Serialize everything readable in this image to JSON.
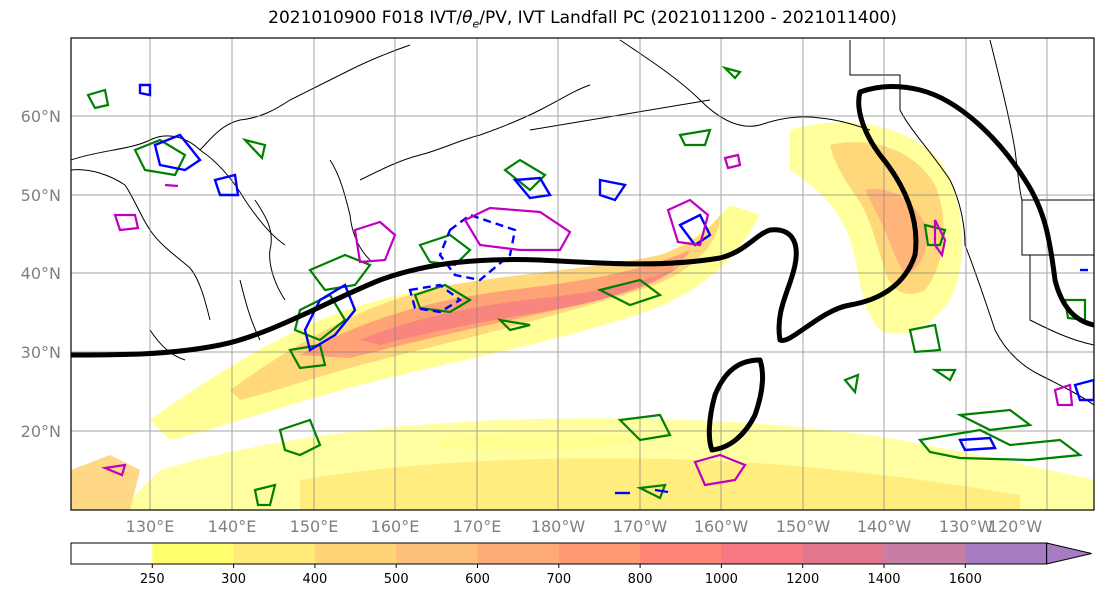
{
  "title_main": "2021010900 F018 IVT/",
  "title_theta": "θ",
  "title_sub": "e",
  "title_rest": "/PV, IVT Landfall PC (2021011200 - 2021011400)",
  "map": {
    "lat_labels": [
      "60°N",
      "50°N",
      "40°N",
      "30°N",
      "20°N"
    ],
    "lon_labels": [
      "130°E",
      "140°E",
      "150°E",
      "160°E",
      "170°E",
      "180°W",
      "170°W",
      "160°W",
      "150°W",
      "140°W",
      "130°W",
      "120°W"
    ],
    "grid": true
  },
  "colorbar": {
    "levels": [
      "250",
      "300",
      "400",
      "500",
      "600",
      "700",
      "800",
      "1000",
      "1200",
      "1400",
      "1600"
    ],
    "colors": [
      "#ffffff",
      "#ffff6e",
      "#ffe978",
      "#ffd479",
      "#ffc07a",
      "#ffab78",
      "#ff9a77",
      "#ff8577",
      "#f57882",
      "#e0778e",
      "#c67ea4",
      "#a77cc2"
    ]
  },
  "colors": {
    "ivt_band": "#ffd479",
    "ivt_core": "#ff8577",
    "landfall_pc": "#000000",
    "theta_e": "#008000",
    "pv_positive": "#0000ff",
    "pv_negative": "#c000c0"
  }
}
